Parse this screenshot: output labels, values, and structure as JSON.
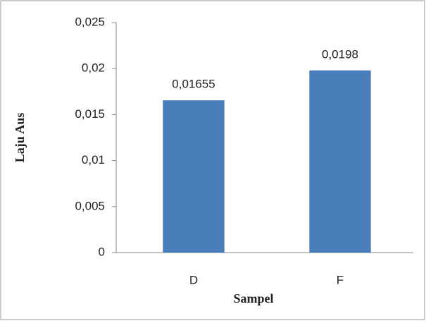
{
  "chart_data": {
    "type": "bar",
    "x_label": "Sampel",
    "y_label": "Laju Aus",
    "categories": [
      "D",
      "F"
    ],
    "values": [
      0.01655,
      0.0198
    ],
    "value_labels": [
      "0,01655",
      "0,0198"
    ],
    "color": "#4a7ebb",
    "ylim": [
      0,
      0.025
    ],
    "yticks": [
      0,
      {
        "value": 0.005,
        "label": "0,005"
      },
      {
        "value": 0.01,
        "label": "0,01"
      },
      {
        "value": 0.015,
        "label": "0,015"
      },
      {
        "value": 0.02,
        "label": "0,02"
      },
      {
        "value": 0.025,
        "label": "0,025"
      }
    ],
    "grid": false
  }
}
